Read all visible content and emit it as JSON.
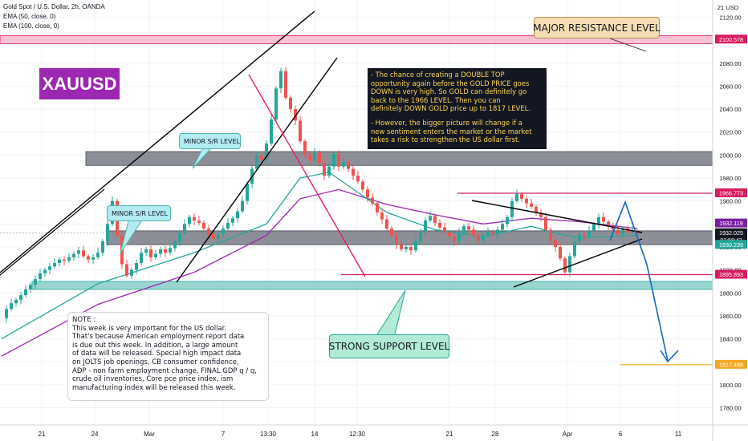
{
  "header": {
    "title": "Gold Spot / U.S. Dollar, 2h, OANDA",
    "ema_fast": "EMA (50, close, 0)",
    "ema_slow": "EMA (100, close, 0)"
  },
  "symbol_badge": "XAUUSD",
  "currency_label": "21 USD",
  "annotations": {
    "analysis": [
      " - The chance of creating a DOUBLE TOP\nopportunity again before the GOLD PRICE goes\nDOWN is very high.  So GOLD can definitely go\nback to the 1966 LEVEL.  Then you can\ndefinitely DOWN GOLD price up to 1817 LEVEL.",
      " - However, the bigger picture will change if a\n new sentiment enters the market or the market\n takes a risk to strengthen the US dollar first."
    ],
    "note": "NOTE :\nThis week is very important for the US dollar.\nThat's because American employment report data\nis due out this week.  In addition, a large amount\nof data will be released.  Special high impact data\non JOLTS job openings, CB consumer confidence,\nADP - non farm employment change, FINAL GDP q / q,\n crude oil inventories, Core pce price index, ism\n manufacturing index will be released this week.",
    "minor_sr_upper": "MINOR S/R LEVEL",
    "minor_sr_lower": "MINOR S/R LEVEL",
    "major_resistance": "MAJOR RESISTANCE LEVEL",
    "strong_support": "STRONG SUPPORT LEVEL"
  },
  "colors": {
    "bull": "#26a69a",
    "bear": "#ef5350",
    "ema_fast": "#26a69a",
    "ema_slow": "#9c27b0",
    "resistance_zone": "#f8bbd0",
    "gray_zone": "#787b86",
    "support_zone": "#80cbc4",
    "forecast": "#1565c0",
    "trendline": "#000000"
  },
  "chart_data": {
    "type": "candlestick",
    "symbol": "XAUUSD",
    "timeframe": "2h",
    "y_axis": {
      "min": 1765,
      "max": 2135,
      "ticks": [
        1780,
        1800,
        1820,
        1840,
        1860,
        1880,
        1900,
        1920,
        1940,
        1960,
        1980,
        2000,
        2020,
        2040,
        2060,
        2080,
        2100,
        2120
      ]
    },
    "x_axis_labels": [
      "21",
      "24",
      "Mar",
      "7",
      "13:30",
      "14",
      "12:30",
      "21",
      "28",
      "Apr",
      "6",
      "11"
    ],
    "price_labels": [
      {
        "text": "2100.578",
        "value": 2100.578,
        "color": "#d81b60"
      },
      {
        "text": "1966.773",
        "value": 1966.773,
        "color": "#d81b60"
      },
      {
        "text": "1932.119",
        "value": 1932.119,
        "color": "#7b1fa2"
      },
      {
        "text": "1932.025",
        "value": 1932.025,
        "color": "#131722",
        "sub": "01:58:43"
      },
      {
        "text": "1930.239",
        "value": 1930.239,
        "color": "#26a69a"
      },
      {
        "text": "1895.893",
        "value": 1895.893,
        "color": "#d81b60"
      },
      {
        "text": "1817.488",
        "value": 1817.488,
        "color": "#f5a623"
      }
    ],
    "zones": [
      {
        "name": "major resistance",
        "from": 2097,
        "to": 2104
      },
      {
        "name": "upper minor s/r",
        "from": 1991,
        "to": 2003
      },
      {
        "name": "lower minor s/r",
        "from": 1922,
        "to": 1934
      },
      {
        "name": "strong support",
        "from": 1883,
        "to": 1890
      }
    ],
    "levels": [
      1966.773,
      1895.893,
      1817.488
    ],
    "price_path": [
      [
        0,
        1858
      ],
      [
        1,
        1866
      ],
      [
        2,
        1871
      ],
      [
        3,
        1874
      ],
      [
        4,
        1878
      ],
      [
        5,
        1883
      ],
      [
        6,
        1887
      ],
      [
        7,
        1892
      ],
      [
        8,
        1897
      ],
      [
        9,
        1900
      ],
      [
        10,
        1903
      ],
      [
        11,
        1906
      ],
      [
        12,
        1909
      ],
      [
        13,
        1908
      ],
      [
        14,
        1911
      ],
      [
        15,
        1914
      ],
      [
        16,
        1917
      ],
      [
        17,
        1912
      ],
      [
        18,
        1909
      ],
      [
        19,
        1911
      ],
      [
        20,
        1915
      ],
      [
        21,
        1925
      ],
      [
        22,
        1940
      ],
      [
        23,
        1960
      ],
      [
        24,
        1930
      ],
      [
        25,
        1905
      ],
      [
        26,
        1895
      ],
      [
        27,
        1900
      ],
      [
        28,
        1906
      ],
      [
        29,
        1915
      ],
      [
        30,
        1918
      ],
      [
        31,
        1911
      ],
      [
        32,
        1914
      ],
      [
        33,
        1918
      ],
      [
        34,
        1915
      ],
      [
        35,
        1919
      ],
      [
        36,
        1925
      ],
      [
        37,
        1932
      ],
      [
        38,
        1940
      ],
      [
        39,
        1946
      ],
      [
        40,
        1943
      ],
      [
        41,
        1941
      ],
      [
        42,
        1936
      ],
      [
        43,
        1931
      ],
      [
        44,
        1927
      ],
      [
        45,
        1931
      ],
      [
        46,
        1936
      ],
      [
        47,
        1941
      ],
      [
        48,
        1945
      ],
      [
        49,
        1951
      ],
      [
        50,
        1960
      ],
      [
        51,
        1975
      ],
      [
        52,
        1988
      ],
      [
        53,
        1999
      ],
      [
        54,
        1996
      ],
      [
        55,
        2010
      ],
      [
        56,
        2031
      ],
      [
        57,
        2058
      ],
      [
        58,
        2073
      ],
      [
        59,
        2050
      ],
      [
        60,
        2040
      ],
      [
        61,
        2030
      ],
      [
        62,
        2012
      ],
      [
        63,
        2000
      ],
      [
        64,
        1995
      ],
      [
        65,
        2002
      ],
      [
        66,
        1993
      ],
      [
        67,
        1982
      ],
      [
        68,
        1990
      ],
      [
        69,
        2001
      ],
      [
        70,
        1990
      ],
      [
        71,
        1994
      ],
      [
        72,
        1988
      ],
      [
        73,
        1982
      ],
      [
        74,
        1977
      ],
      [
        75,
        1970
      ],
      [
        76,
        1963
      ],
      [
        77,
        1958
      ],
      [
        78,
        1950
      ],
      [
        79,
        1944
      ],
      [
        80,
        1936
      ],
      [
        81,
        1930
      ],
      [
        82,
        1922
      ],
      [
        83,
        1918
      ],
      [
        84,
        1920
      ],
      [
        85,
        1917
      ],
      [
        86,
        1925
      ],
      [
        87,
        1934
      ],
      [
        88,
        1943
      ],
      [
        89,
        1947
      ],
      [
        90,
        1941
      ],
      [
        91,
        1937
      ],
      [
        92,
        1933
      ],
      [
        93,
        1929
      ],
      [
        94,
        1925
      ],
      [
        95,
        1932
      ],
      [
        96,
        1938
      ],
      [
        97,
        1935
      ],
      [
        98,
        1930
      ],
      [
        99,
        1926
      ],
      [
        100,
        1930
      ],
      [
        101,
        1933
      ],
      [
        102,
        1931
      ],
      [
        103,
        1935
      ],
      [
        104,
        1940
      ],
      [
        105,
        1946
      ],
      [
        106,
        1960
      ],
      [
        107,
        1966
      ],
      [
        108,
        1962
      ],
      [
        109,
        1958
      ],
      [
        110,
        1955
      ],
      [
        111,
        1950
      ],
      [
        112,
        1946
      ],
      [
        113,
        1935
      ],
      [
        114,
        1926
      ],
      [
        115,
        1920
      ],
      [
        116,
        1910
      ],
      [
        117,
        1898
      ],
      [
        118,
        1912
      ],
      [
        119,
        1925
      ],
      [
        120,
        1931
      ],
      [
        121,
        1929
      ],
      [
        122,
        1934
      ],
      [
        123,
        1940
      ],
      [
        124,
        1946
      ],
      [
        125,
        1942
      ],
      [
        126,
        1938
      ],
      [
        127,
        1935
      ],
      [
        128,
        1931
      ],
      [
        129,
        1936
      ],
      [
        130,
        1933
      ],
      [
        131,
        1934
      ],
      [
        132,
        1932
      ]
    ],
    "ema_50_path": [
      [
        0,
        1840
      ],
      [
        20,
        1888
      ],
      [
        40,
        1915
      ],
      [
        55,
        1940
      ],
      [
        62,
        1980
      ],
      [
        68,
        1985
      ],
      [
        80,
        1950
      ],
      [
        90,
        1935
      ],
      [
        100,
        1929
      ],
      [
        110,
        1938
      ],
      [
        115,
        1932
      ],
      [
        120,
        1928
      ],
      [
        132,
        1930
      ]
    ],
    "ema_100_path": [
      [
        0,
        1825
      ],
      [
        20,
        1870
      ],
      [
        40,
        1898
      ],
      [
        55,
        1930
      ],
      [
        62,
        1962
      ],
      [
        70,
        1970
      ],
      [
        80,
        1957
      ],
      [
        90,
        1948
      ],
      [
        100,
        1940
      ],
      [
        110,
        1945
      ],
      [
        120,
        1942
      ],
      [
        132,
        1936
      ]
    ],
    "forecast_path": [
      [
        133,
        1940
      ],
      [
        137,
        1966
      ],
      [
        141,
        1925
      ],
      [
        146,
        1817
      ]
    ]
  }
}
